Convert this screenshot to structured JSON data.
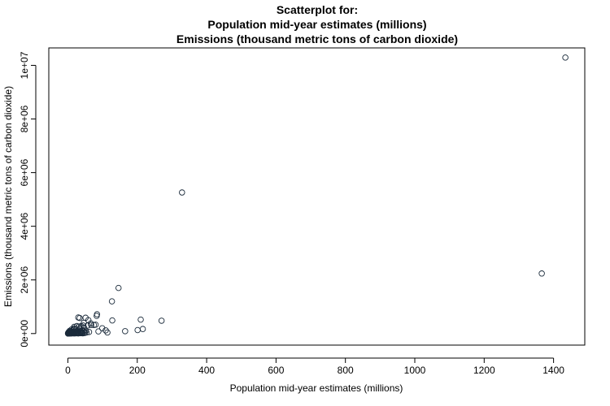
{
  "chart_data": {
    "type": "scatter",
    "title": [
      "Scatterplot for:",
      "Population mid-year estimates (millions)",
      "Emissions (thousand metric tons of carbon dioxide)"
    ],
    "xlabel": "Population mid-year estimates (millions)",
    "ylabel": "Emissions (thousand metric tons of carbon dioxide)",
    "xlim": [
      -55,
      1490
    ],
    "ylim": [
      -430000,
      10650000
    ],
    "x_ticks": [
      0,
      200,
      400,
      600,
      800,
      1000,
      1200,
      1400
    ],
    "x_tick_labels": [
      "0",
      "200",
      "400",
      "600",
      "800",
      "1000",
      "1200",
      "1400"
    ],
    "y_ticks": [
      0,
      2000000,
      4000000,
      6000000,
      8000000,
      10000000
    ],
    "y_tick_labels": [
      "0e+00",
      "2e+06",
      "4e+06",
      "6e+06",
      "8e+06",
      "1e+07"
    ],
    "grid": false,
    "legend": "none",
    "marker": "open-circle",
    "marker_color": "#1a2a3a",
    "points": [
      [
        1434,
        10290000
      ],
      [
        329,
        5260000
      ],
      [
        1366,
        2240000
      ],
      [
        146,
        1700000
      ],
      [
        127,
        1200000
      ],
      [
        84,
        720000
      ],
      [
        83,
        660000
      ],
      [
        210,
        520000
      ],
      [
        34,
        580000
      ],
      [
        30,
        600000
      ],
      [
        51,
        590000
      ],
      [
        59,
        500000
      ],
      [
        128,
        490000
      ],
      [
        270,
        480000
      ],
      [
        46,
        400000
      ],
      [
        66,
        380000
      ],
      [
        67,
        320000
      ],
      [
        80,
        330000
      ],
      [
        75,
        320000
      ],
      [
        57,
        300000
      ],
      [
        38,
        280000
      ],
      [
        26,
        280000
      ],
      [
        44,
        300000
      ],
      [
        32,
        260000
      ],
      [
        18,
        250000
      ],
      [
        47,
        220000
      ],
      [
        99,
        200000
      ],
      [
        109,
        120000
      ],
      [
        216,
        170000
      ],
      [
        201,
        130000
      ],
      [
        165,
        90000
      ],
      [
        114,
        40000
      ],
      [
        88,
        80000
      ],
      [
        35,
        200000
      ],
      [
        17,
        190000
      ],
      [
        19,
        170000
      ],
      [
        23,
        150000
      ],
      [
        10,
        150000
      ],
      [
        13,
        120000
      ],
      [
        29,
        110000
      ],
      [
        5,
        100000
      ],
      [
        8,
        80000
      ],
      [
        40,
        120000
      ],
      [
        45,
        90000
      ],
      [
        52,
        100000
      ],
      [
        61,
        60000
      ],
      [
        54,
        40000
      ],
      [
        3,
        60000
      ],
      [
        9,
        50000
      ],
      [
        11,
        40000
      ],
      [
        7,
        30000
      ],
      [
        12,
        70000
      ],
      [
        15,
        40000
      ],
      [
        20,
        50000
      ],
      [
        25,
        30000
      ],
      [
        28,
        60000
      ],
      [
        31,
        20000
      ],
      [
        36,
        40000
      ],
      [
        42,
        30000
      ],
      [
        48,
        20000
      ],
      [
        6,
        20000
      ],
      [
        4,
        20000
      ],
      [
        2,
        15000
      ],
      [
        1,
        10000
      ],
      [
        0.5,
        5000
      ],
      [
        1,
        3000
      ],
      [
        2,
        8000
      ],
      [
        3,
        20000
      ],
      [
        4,
        9000
      ],
      [
        5,
        40000
      ],
      [
        6,
        12000
      ],
      [
        7,
        6000
      ],
      [
        8,
        25000
      ],
      [
        9,
        14000
      ],
      [
        10,
        7000
      ],
      [
        11,
        18000
      ],
      [
        12,
        22000
      ],
      [
        13,
        9000
      ],
      [
        14,
        35000
      ],
      [
        16,
        12000
      ],
      [
        17,
        28000
      ],
      [
        18,
        6000
      ],
      [
        19,
        45000
      ],
      [
        21,
        16000
      ],
      [
        22,
        9000
      ],
      [
        24,
        22000
      ],
      [
        26,
        11000
      ],
      [
        27,
        40000
      ],
      [
        30,
        7000
      ],
      [
        33,
        26000
      ],
      [
        37,
        12000
      ],
      [
        39,
        60000
      ],
      [
        41,
        15000
      ],
      [
        43,
        8000
      ],
      [
        49,
        45000
      ],
      [
        1,
        30000
      ],
      [
        2,
        50000
      ],
      [
        3,
        2000
      ],
      [
        0.3,
        800
      ],
      [
        0.8,
        1500
      ]
    ]
  }
}
